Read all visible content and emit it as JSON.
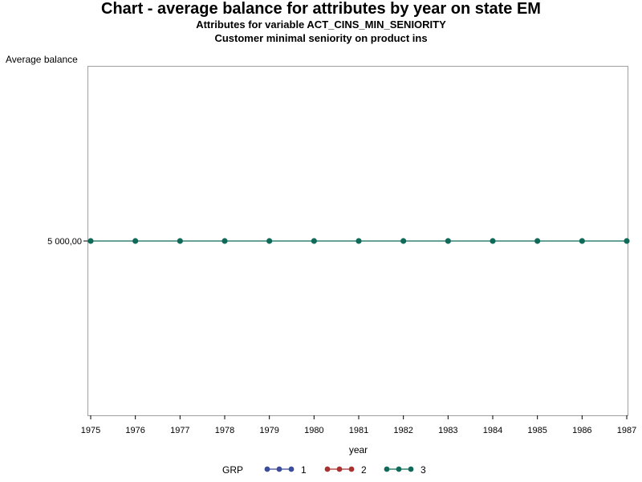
{
  "header": {
    "title": "Chart - average balance for attributes by year on state EM",
    "subtitle1": "Attributes for variable ACT_CINS_MIN_SENIORITY",
    "subtitle2": "Customer minimal seniority on product ins"
  },
  "chart_data": {
    "type": "line",
    "title": "Chart - average balance for attributes by year on state EM",
    "subtitle": [
      "Attributes for variable ACT_CINS_MIN_SENIORITY",
      "Customer minimal seniority on product ins"
    ],
    "xlabel": "year",
    "ylabel": "Average balance",
    "x": [
      1975,
      1976,
      1977,
      1978,
      1979,
      1980,
      1981,
      1982,
      1983,
      1984,
      1985,
      1986,
      1987
    ],
    "xlim": [
      1975,
      1987
    ],
    "ylim": [
      3000,
      7000
    ],
    "yticks": [
      5000
    ],
    "ytick_labels": [
      "5 000,00"
    ],
    "grid": false,
    "legend_title": "GRP",
    "legend_position": "bottom",
    "series": [
      {
        "name": "1",
        "color": "#3b4c9b",
        "values": [
          null,
          null,
          null,
          null,
          null,
          null,
          null,
          null,
          null,
          null,
          null,
          null,
          null
        ]
      },
      {
        "name": "2",
        "color": "#a83232",
        "values": [
          null,
          null,
          null,
          null,
          null,
          null,
          null,
          null,
          null,
          null,
          null,
          null,
          null
        ]
      },
      {
        "name": "3",
        "color": "#0f6b58",
        "values": [
          5000,
          5000,
          5000,
          5000,
          5000,
          5000,
          5000,
          5000,
          5000,
          5000,
          5000,
          5000,
          5000
        ]
      }
    ]
  }
}
